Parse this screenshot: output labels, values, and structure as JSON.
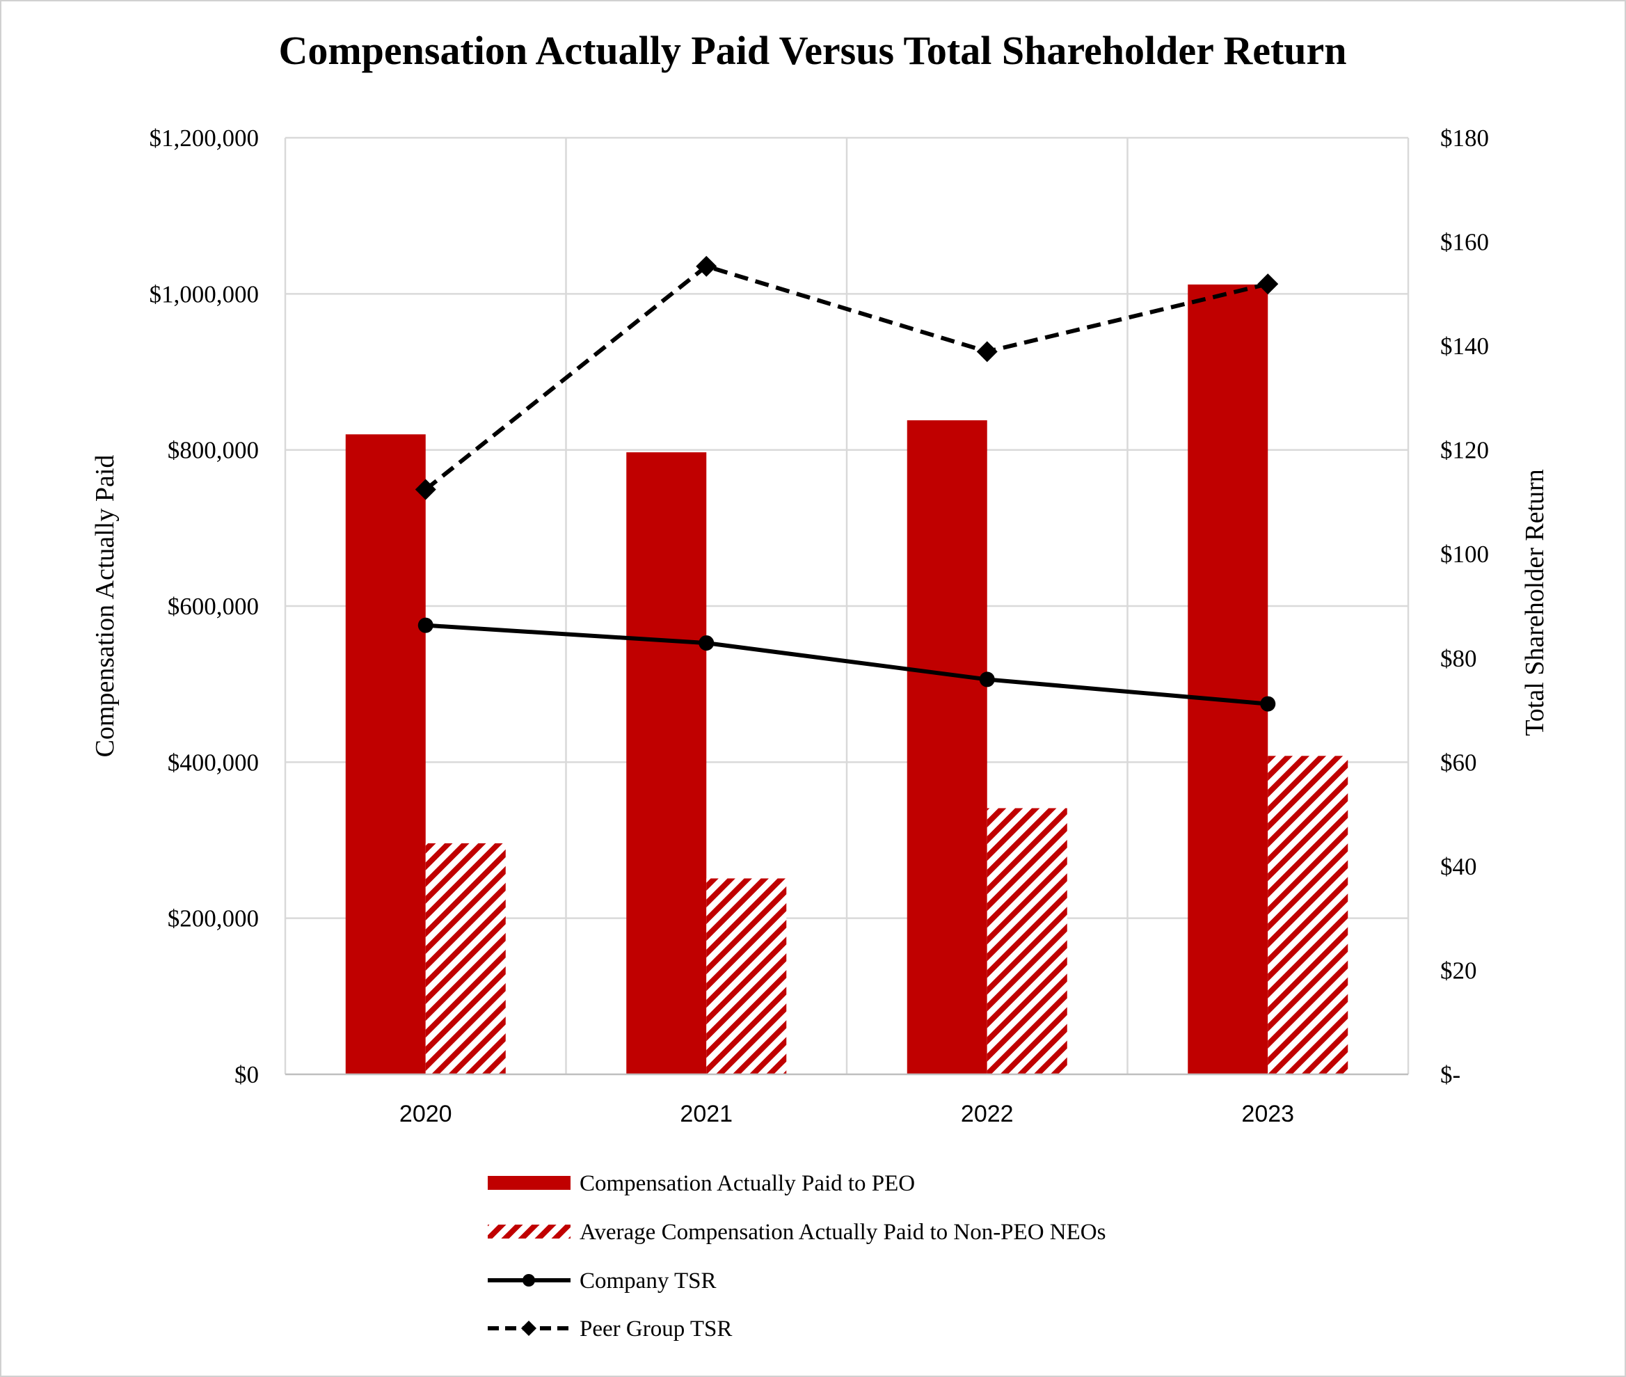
{
  "chart_data": {
    "type": "bar",
    "title": "Compensation Actually Paid Versus Total Shareholder Return",
    "categories": [
      "2020",
      "2021",
      "2022",
      "2023"
    ],
    "ylabel": "Compensation Actually Paid",
    "y2label": "Total Shareholder Return",
    "ylim": [
      0,
      1200000
    ],
    "y2lim": [
      0,
      180
    ],
    "yticks": [
      "$0",
      "$200,000",
      "$400,000",
      "$600,000",
      "$800,000",
      "$1,000,000",
      "$1,200,000"
    ],
    "y2ticks": [
      "$-",
      "$20",
      "$40",
      "$60",
      "$80",
      "$100",
      "$120",
      "$140",
      "$160",
      "$180"
    ],
    "grid": true,
    "legend_position": "bottom",
    "series": [
      {
        "name": "Compensation Actually Paid to PEO",
        "kind": "bar",
        "axis": "left",
        "style": "solid",
        "color": "#c00000",
        "values": [
          820000,
          797000,
          838000,
          1012000
        ]
      },
      {
        "name": "Average Compensation Actually Paid to Non-PEO NEOs",
        "kind": "bar",
        "axis": "left",
        "style": "hatched",
        "color": "#c00000",
        "values": [
          296000,
          251000,
          341000,
          408000
        ]
      },
      {
        "name": "Company TSR",
        "kind": "line",
        "axis": "right",
        "style": "solid",
        "marker": "circle",
        "color": "#000000",
        "values": [
          86.3,
          82.9,
          75.9,
          71.2
        ]
      },
      {
        "name": "Peer Group TSR",
        "kind": "line",
        "axis": "right",
        "style": "dashed",
        "marker": "diamond",
        "color": "#000000",
        "values": [
          112.4,
          155.3,
          138.9,
          151.9
        ]
      }
    ]
  }
}
